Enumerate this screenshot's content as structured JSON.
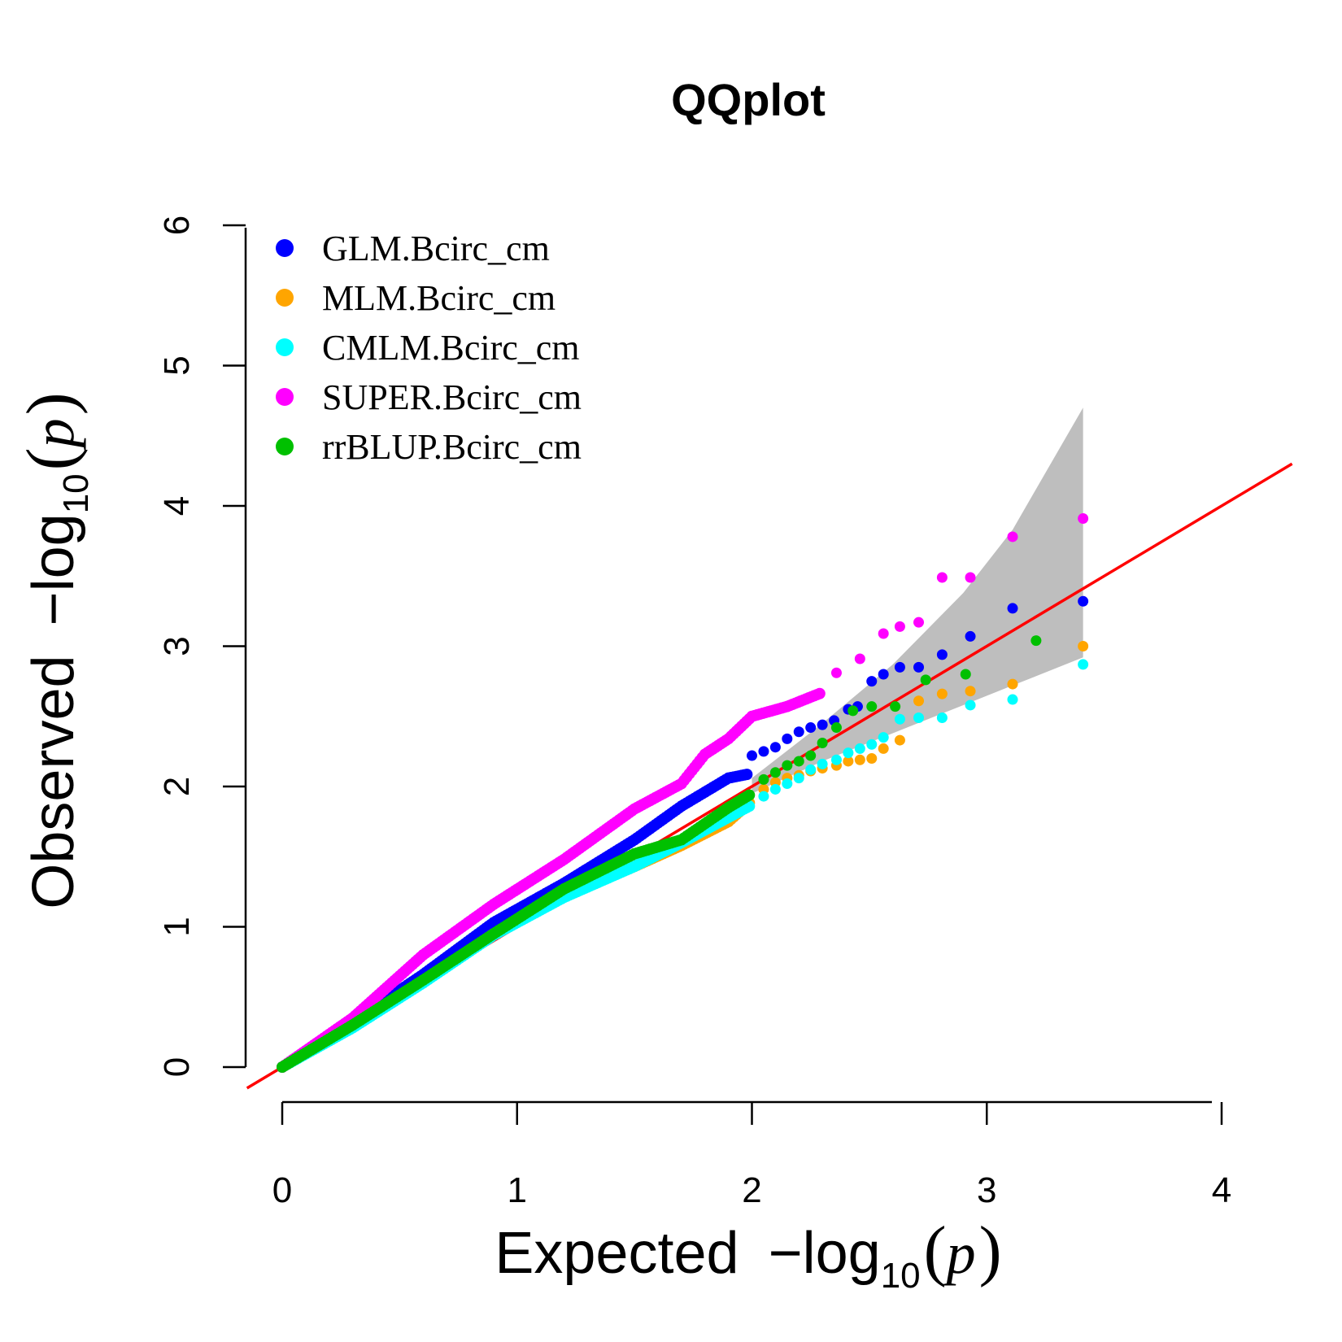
{
  "chart_data": {
    "type": "scatter",
    "title": "QQplot",
    "xlabel": {
      "main": "Expected",
      "prefix": "−log",
      "sub": "10",
      "var": "p"
    },
    "ylabel": {
      "main": "Observed",
      "prefix": "−log",
      "sub": "10",
      "var": "p"
    },
    "xlim": [
      0,
      4
    ],
    "ylim": [
      0,
      6
    ],
    "xticks": [
      "0",
      "1",
      "2",
      "3",
      "4"
    ],
    "yticks": [
      "0",
      "1",
      "2",
      "3",
      "4",
      "5",
      "6"
    ],
    "legend_position": "top-left",
    "reference_line": {
      "color": "#ff0000",
      "slope": 1,
      "intercept": 0
    },
    "confidence_band": {
      "color": "#bebebe",
      "upper": [
        [
          2.0,
          2.06
        ],
        [
          2.3,
          2.45
        ],
        [
          2.6,
          2.87
        ],
        [
          2.9,
          3.38
        ],
        [
          3.11,
          3.83
        ],
        [
          3.41,
          4.7
        ]
      ],
      "lower": [
        [
          3.41,
          2.92
        ],
        [
          3.11,
          2.72
        ],
        [
          2.9,
          2.58
        ],
        [
          2.6,
          2.38
        ],
        [
          2.3,
          2.18
        ],
        [
          2.0,
          1.95
        ]
      ]
    },
    "series": [
      {
        "name": "GLM.Bcirc_cm",
        "color": "#0000ff",
        "curve": [
          [
            0,
            0
          ],
          [
            0.3,
            0.32
          ],
          [
            0.6,
            0.66
          ],
          [
            0.9,
            1.03
          ],
          [
            1.2,
            1.31
          ],
          [
            1.5,
            1.62
          ],
          [
            1.7,
            1.86
          ],
          [
            1.9,
            2.06
          ],
          [
            1.99,
            2.09
          ]
        ],
        "points": [
          [
            2.0,
            2.22
          ],
          [
            2.05,
            2.25
          ],
          [
            2.1,
            2.28
          ],
          [
            2.15,
            2.34
          ],
          [
            2.2,
            2.39
          ],
          [
            2.25,
            2.42
          ],
          [
            2.3,
            2.44
          ],
          [
            2.35,
            2.47
          ],
          [
            2.41,
            2.55
          ],
          [
            2.45,
            2.57
          ],
          [
            2.51,
            2.75
          ],
          [
            2.56,
            2.8
          ],
          [
            2.63,
            2.85
          ],
          [
            2.71,
            2.85
          ],
          [
            2.81,
            2.94
          ],
          [
            2.93,
            3.07
          ],
          [
            3.11,
            3.27
          ],
          [
            3.41,
            3.32
          ]
        ]
      },
      {
        "name": "MLM.Bcirc_cm",
        "color": "#ffa500",
        "curve": [
          [
            0,
            0
          ],
          [
            0.3,
            0.29
          ],
          [
            0.6,
            0.61
          ],
          [
            0.9,
            0.95
          ],
          [
            1.2,
            1.22
          ],
          [
            1.5,
            1.43
          ],
          [
            1.7,
            1.58
          ],
          [
            1.9,
            1.75
          ],
          [
            2.0,
            1.9
          ]
        ],
        "points": [
          [
            2.05,
            1.98
          ],
          [
            2.1,
            2.03
          ],
          [
            2.15,
            2.06
          ],
          [
            2.2,
            2.08
          ],
          [
            2.25,
            2.11
          ],
          [
            2.3,
            2.13
          ],
          [
            2.36,
            2.15
          ],
          [
            2.41,
            2.18
          ],
          [
            2.46,
            2.19
          ],
          [
            2.51,
            2.2
          ],
          [
            2.56,
            2.27
          ],
          [
            2.63,
            2.33
          ],
          [
            2.71,
            2.61
          ],
          [
            2.81,
            2.66
          ],
          [
            2.93,
            2.68
          ],
          [
            3.11,
            2.73
          ],
          [
            3.41,
            3.0
          ]
        ]
      },
      {
        "name": "CMLM.Bcirc_cm",
        "color": "#00ffff",
        "curve": [
          [
            0,
            0
          ],
          [
            0.3,
            0.28
          ],
          [
            0.6,
            0.6
          ],
          [
            0.9,
            0.94
          ],
          [
            1.2,
            1.21
          ],
          [
            1.5,
            1.43
          ],
          [
            1.7,
            1.6
          ],
          [
            1.9,
            1.78
          ],
          [
            2.0,
            1.87
          ]
        ],
        "points": [
          [
            2.05,
            1.93
          ],
          [
            2.1,
            1.98
          ],
          [
            2.15,
            2.02
          ],
          [
            2.2,
            2.06
          ],
          [
            2.25,
            2.12
          ],
          [
            2.3,
            2.16
          ],
          [
            2.36,
            2.19
          ],
          [
            2.41,
            2.24
          ],
          [
            2.46,
            2.27
          ],
          [
            2.51,
            2.3
          ],
          [
            2.56,
            2.35
          ],
          [
            2.63,
            2.48
          ],
          [
            2.71,
            2.49
          ],
          [
            2.81,
            2.49
          ],
          [
            2.93,
            2.58
          ],
          [
            3.11,
            2.62
          ],
          [
            3.41,
            2.87
          ]
        ]
      },
      {
        "name": "SUPER.Bcirc_cm",
        "color": "#ff00ff",
        "curve": [
          [
            0,
            0
          ],
          [
            0.3,
            0.35
          ],
          [
            0.6,
            0.8
          ],
          [
            0.9,
            1.16
          ],
          [
            1.2,
            1.48
          ],
          [
            1.5,
            1.84
          ],
          [
            1.7,
            2.02
          ],
          [
            1.8,
            2.23
          ],
          [
            1.9,
            2.34
          ],
          [
            2.0,
            2.5
          ],
          [
            2.15,
            2.57
          ],
          [
            2.3,
            2.67
          ]
        ],
        "points": [
          [
            2.36,
            2.81
          ],
          [
            2.46,
            2.91
          ],
          [
            2.56,
            3.09
          ],
          [
            2.63,
            3.14
          ],
          [
            2.71,
            3.17
          ],
          [
            2.81,
            3.49
          ],
          [
            2.93,
            3.49
          ],
          [
            3.11,
            3.78
          ],
          [
            3.41,
            3.91
          ]
        ]
      },
      {
        "name": "rrBLUP.Bcirc_cm",
        "color": "#00c000",
        "curve": [
          [
            0,
            0
          ],
          [
            0.3,
            0.3
          ],
          [
            0.6,
            0.62
          ],
          [
            0.9,
            0.95
          ],
          [
            1.2,
            1.27
          ],
          [
            1.5,
            1.52
          ],
          [
            1.7,
            1.62
          ],
          [
            1.9,
            1.85
          ],
          [
            2.0,
            1.95
          ]
        ],
        "points": [
          [
            2.05,
            2.05
          ],
          [
            2.1,
            2.1
          ],
          [
            2.15,
            2.15
          ],
          [
            2.2,
            2.18
          ],
          [
            2.25,
            2.22
          ],
          [
            2.3,
            2.31
          ],
          [
            2.36,
            2.42
          ],
          [
            2.43,
            2.54
          ],
          [
            2.51,
            2.57
          ],
          [
            2.61,
            2.57
          ],
          [
            2.74,
            2.76
          ],
          [
            2.91,
            2.8
          ],
          [
            3.21,
            3.04
          ]
        ]
      }
    ]
  }
}
